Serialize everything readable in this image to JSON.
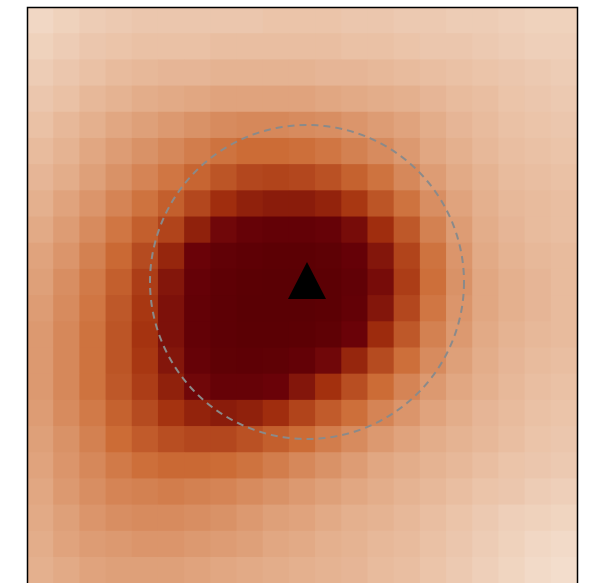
{
  "chart_data": {
    "type": "heatmap",
    "colormap": [
      "#f3ddcc",
      "#e2aa86",
      "#cc6c36",
      "#a3300e",
      "#6a0208",
      "#5a0004"
    ],
    "z": [
      [
        12,
        14,
        16,
        17,
        18,
        18,
        18,
        18,
        18,
        19,
        19,
        19,
        18,
        18,
        17,
        17,
        16,
        16,
        15,
        14,
        14
      ],
      [
        14,
        16,
        18,
        19,
        20,
        20,
        20,
        21,
        21,
        21,
        21,
        21,
        20,
        20,
        19,
        18,
        18,
        17,
        16,
        15,
        15
      ],
      [
        16,
        18,
        20,
        22,
        23,
        24,
        24,
        25,
        25,
        25,
        25,
        24,
        24,
        23,
        22,
        21,
        20,
        19,
        18,
        17,
        16
      ],
      [
        18,
        20,
        23,
        25,
        27,
        28,
        29,
        30,
        30,
        30,
        30,
        29,
        28,
        27,
        26,
        24,
        22,
        21,
        19,
        18,
        17
      ],
      [
        20,
        23,
        26,
        29,
        31,
        33,
        35,
        37,
        38,
        38,
        37,
        36,
        34,
        32,
        30,
        27,
        24,
        22,
        20,
        19,
        18
      ],
      [
        22,
        25,
        29,
        32,
        35,
        38,
        41,
        44,
        46,
        46,
        45,
        43,
        40,
        37,
        33,
        29,
        26,
        23,
        21,
        20,
        19
      ],
      [
        24,
        27,
        31,
        35,
        39,
        43,
        48,
        53,
        57,
        58,
        57,
        54,
        49,
        44,
        38,
        32,
        28,
        25,
        22,
        21,
        20
      ],
      [
        26,
        30,
        34,
        39,
        44,
        50,
        57,
        65,
        70,
        72,
        72,
        69,
        62,
        53,
        44,
        36,
        30,
        26,
        23,
        22,
        21
      ],
      [
        28,
        32,
        37,
        43,
        50,
        58,
        70,
        80,
        86,
        90,
        90,
        86,
        78,
        65,
        52,
        40,
        32,
        27,
        24,
        22,
        21
      ],
      [
        30,
        34,
        40,
        47,
        56,
        68,
        82,
        92,
        96,
        98,
        98,
        95,
        88,
        74,
        58,
        44,
        34,
        28,
        25,
        23,
        22
      ],
      [
        31,
        36,
        42,
        50,
        60,
        74,
        88,
        96,
        99,
        100,
        100,
        98,
        92,
        78,
        60,
        45,
        35,
        29,
        26,
        24,
        22
      ],
      [
        32,
        37,
        43,
        52,
        62,
        76,
        90,
        97,
        100,
        100,
        100,
        98,
        90,
        74,
        57,
        43,
        34,
        29,
        26,
        24,
        22
      ],
      [
        33,
        38,
        44,
        53,
        63,
        76,
        90,
        97,
        99,
        99,
        98,
        94,
        82,
        66,
        52,
        40,
        33,
        28,
        25,
        23,
        22
      ],
      [
        33,
        38,
        44,
        53,
        62,
        74,
        86,
        94,
        96,
        94,
        90,
        80,
        68,
        56,
        45,
        37,
        31,
        27,
        24,
        22,
        21
      ],
      [
        33,
        38,
        44,
        52,
        60,
        70,
        80,
        86,
        86,
        82,
        74,
        64,
        55,
        46,
        39,
        33,
        29,
        26,
        23,
        21,
        20
      ],
      [
        32,
        37,
        42,
        49,
        56,
        63,
        69,
        72,
        70,
        65,
        58,
        51,
        45,
        39,
        34,
        30,
        27,
        24,
        22,
        20,
        19
      ],
      [
        31,
        35,
        40,
        46,
        51,
        55,
        57,
        57,
        54,
        50,
        46,
        41,
        37,
        33,
        30,
        27,
        25,
        23,
        21,
        19,
        18
      ],
      [
        30,
        34,
        38,
        42,
        45,
        47,
        47,
        46,
        44,
        41,
        38,
        35,
        32,
        29,
        27,
        25,
        23,
        21,
        19,
        18,
        17
      ],
      [
        29,
        33,
        36,
        39,
        40,
        41,
        40,
        39,
        37,
        35,
        33,
        31,
        29,
        27,
        25,
        23,
        21,
        19,
        18,
        16,
        15
      ],
      [
        28,
        31,
        34,
        36,
        37,
        37,
        36,
        35,
        33,
        31,
        30,
        28,
        26,
        25,
        23,
        21,
        19,
        17,
        15,
        14,
        13
      ],
      [
        27,
        30,
        32,
        33,
        34,
        34,
        33,
        32,
        31,
        29,
        28,
        26,
        25,
        23,
        22,
        20,
        18,
        16,
        14,
        12,
        11
      ],
      [
        26,
        28,
        30,
        31,
        31,
        31,
        30,
        29,
        28,
        27,
        26,
        25,
        24,
        22,
        21,
        19,
        17,
        15,
        13,
        11,
        10
      ]
    ]
  }
}
